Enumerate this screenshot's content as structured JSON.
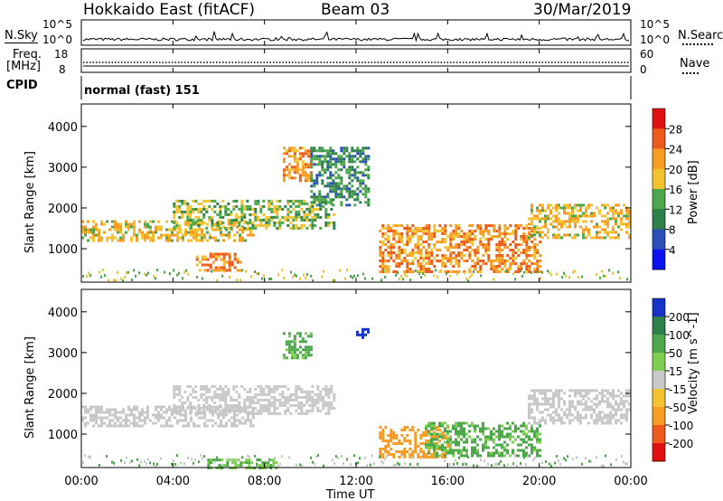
{
  "header": {
    "station": "Hokkaido East (fitACF)",
    "beam": "Beam 03",
    "date": "30/Mar/2019"
  },
  "noise_panel": {
    "left_label": "N.Sky",
    "right_label": "N.Search",
    "left_ticks": [
      "10^5",
      "10^0"
    ],
    "right_ticks": [
      "10^5",
      "10^0"
    ]
  },
  "freq_panel": {
    "left_label_1": "Freq.",
    "left_label_2": "[MHz]",
    "left_ticks": [
      "18",
      "8"
    ],
    "right_label": "Nave",
    "right_ticks": [
      "60",
      "0"
    ]
  },
  "cpid_panel": {
    "label": "CPID",
    "mode_text": "normal (fast) 151"
  },
  "chart_data": [
    {
      "type": "heatmap",
      "title": "",
      "xlabel": "Time UT",
      "ylabel": "Slant Range [km]",
      "x_ticks": [
        "00:00",
        "04:00",
        "08:00",
        "12:00",
        "16:00",
        "20:00",
        "00:00"
      ],
      "y_ticks": [
        1000,
        2000,
        3000,
        4000
      ],
      "xlim_hours": [
        0,
        24
      ],
      "ylim_km": [
        180,
        4550
      ],
      "colorbar": {
        "label": "Power [dB]",
        "ticks": [
          4,
          8,
          12,
          16,
          20,
          24,
          28
        ],
        "colors": [
          "#0a10ee",
          "#2a4fb8",
          "#2f7f4a",
          "#4ca84a",
          "#f2c230",
          "#f79b22",
          "#ee5a1a",
          "#e01010"
        ]
      },
      "regions": [
        {
          "t_start": 0.0,
          "t_end": 7.5,
          "range_lo": 1200,
          "range_hi": 1700,
          "level": 24
        },
        {
          "t_start": 4.0,
          "t_end": 11.0,
          "range_lo": 1500,
          "range_hi": 2200,
          "level": 20
        },
        {
          "t_start": 5.0,
          "t_end": 7.0,
          "range_lo": 500,
          "range_hi": 900,
          "level": 28
        },
        {
          "t_start": 8.8,
          "t_end": 10.0,
          "range_lo": 2700,
          "range_hi": 3500,
          "level": 28
        },
        {
          "t_start": 10.0,
          "t_end": 12.5,
          "range_lo": 2100,
          "range_hi": 3500,
          "level": 16
        },
        {
          "t_start": 13.0,
          "t_end": 20.0,
          "range_lo": 450,
          "range_hi": 1600,
          "level": 28
        },
        {
          "t_start": 19.5,
          "t_end": 24.0,
          "range_lo": 1300,
          "range_hi": 2100,
          "level": 24
        }
      ]
    },
    {
      "type": "heatmap",
      "title": "",
      "xlabel": "Time UT",
      "ylabel": "Slant Range [km]",
      "x_ticks": [
        "00:00",
        "04:00",
        "08:00",
        "12:00",
        "16:00",
        "20:00",
        "00:00"
      ],
      "y_ticks": [
        1000,
        2000,
        3000,
        4000
      ],
      "xlim_hours": [
        0,
        24
      ],
      "ylim_km": [
        180,
        4550
      ],
      "colorbar": {
        "label": "Velocity [m s^-1]",
        "ticks": [
          200,
          100,
          50,
          15,
          -15,
          -50,
          -100,
          -200
        ],
        "colors": [
          "#1533c6",
          "#2f7f4a",
          "#4ca84a",
          "#7fd052",
          "#c8c8c8",
          "#f2c230",
          "#f79b22",
          "#ee5a1a",
          "#e01010"
        ]
      },
      "regions": [
        {
          "t_start": 0.0,
          "t_end": 7.5,
          "range_lo": 1200,
          "range_hi": 1700,
          "velocity": 0
        },
        {
          "t_start": 4.0,
          "t_end": 11.0,
          "range_lo": 1500,
          "range_hi": 2200,
          "velocity": 0
        },
        {
          "t_start": 8.8,
          "t_end": 10.0,
          "range_lo": 2900,
          "range_hi": 3500,
          "velocity": 40
        },
        {
          "t_start": 12.0,
          "t_end": 12.5,
          "range_lo": 3400,
          "range_hi": 3600,
          "velocity": 200
        },
        {
          "t_start": 13.0,
          "t_end": 16.0,
          "range_lo": 450,
          "range_hi": 1200,
          "velocity": -60
        },
        {
          "t_start": 15.0,
          "t_end": 20.0,
          "range_lo": 450,
          "range_hi": 1300,
          "velocity": 40
        },
        {
          "t_start": 19.5,
          "t_end": 24.0,
          "range_lo": 1300,
          "range_hi": 2100,
          "velocity": 0
        },
        {
          "t_start": 5.5,
          "t_end": 8.5,
          "range_lo": 200,
          "range_hi": 400,
          "velocity": 30
        }
      ]
    }
  ]
}
